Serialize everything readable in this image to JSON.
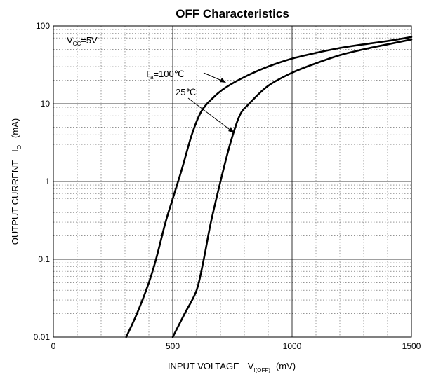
{
  "chart_data": {
    "type": "line",
    "title": "OFF Characteristics",
    "xlabel": "INPUT VOLTAGE",
    "xlabel_symbol": "V",
    "xlabel_subscript": "I(OFF)",
    "xlabel_unit": "(mV)",
    "ylabel": "OUTPUT CURRENT",
    "ylabel_symbol": "I",
    "ylabel_subscript": "O",
    "ylabel_unit": "(mA)",
    "xlim": [
      0,
      1500
    ],
    "ylim": [
      0.01,
      100
    ],
    "yscale": "log",
    "grid": true,
    "x_ticks": [
      {
        "value": 0,
        "label": "0"
      },
      {
        "value": 500,
        "label": "500"
      },
      {
        "value": 1000,
        "label": "1000"
      },
      {
        "value": 1500,
        "label": "1500"
      }
    ],
    "y_ticks": [
      {
        "value": 100,
        "label": "100"
      },
      {
        "value": 10,
        "label": "10"
      },
      {
        "value": 1,
        "label": "1"
      },
      {
        "value": 0.1,
        "label": "0.1"
      },
      {
        "value": 0.01,
        "label": "0.01"
      }
    ],
    "condition": {
      "symbol": "V",
      "subscript": "CC",
      "value": "=5V"
    },
    "series": [
      {
        "name": "Ta=100℃",
        "label_symbol": "T",
        "label_subscript": "a",
        "label_value": "=100℃",
        "points": [
          [
            305,
            0.01
          ],
          [
            350,
            0.02
          ],
          [
            400,
            0.05
          ],
          [
            430,
            0.1
          ],
          [
            470,
            0.3
          ],
          [
            500,
            0.6
          ],
          [
            540,
            1.5
          ],
          [
            580,
            4
          ],
          [
            620,
            8
          ],
          [
            670,
            12
          ],
          [
            720,
            16
          ],
          [
            800,
            22
          ],
          [
            900,
            30
          ],
          [
            1000,
            38
          ],
          [
            1100,
            45
          ],
          [
            1200,
            52
          ],
          [
            1300,
            58
          ],
          [
            1400,
            64
          ],
          [
            1500,
            72
          ]
        ]
      },
      {
        "name": "25℃",
        "label_value": "25℃",
        "points": [
          [
            500,
            0.01
          ],
          [
            550,
            0.02
          ],
          [
            600,
            0.04
          ],
          [
            630,
            0.1
          ],
          [
            660,
            0.3
          ],
          [
            700,
            1
          ],
          [
            740,
            3
          ],
          [
            780,
            7
          ],
          [
            820,
            10
          ],
          [
            900,
            17
          ],
          [
            1000,
            25
          ],
          [
            1100,
            33
          ],
          [
            1200,
            42
          ],
          [
            1300,
            50
          ],
          [
            1400,
            58
          ],
          [
            1500,
            67
          ]
        ]
      }
    ]
  }
}
